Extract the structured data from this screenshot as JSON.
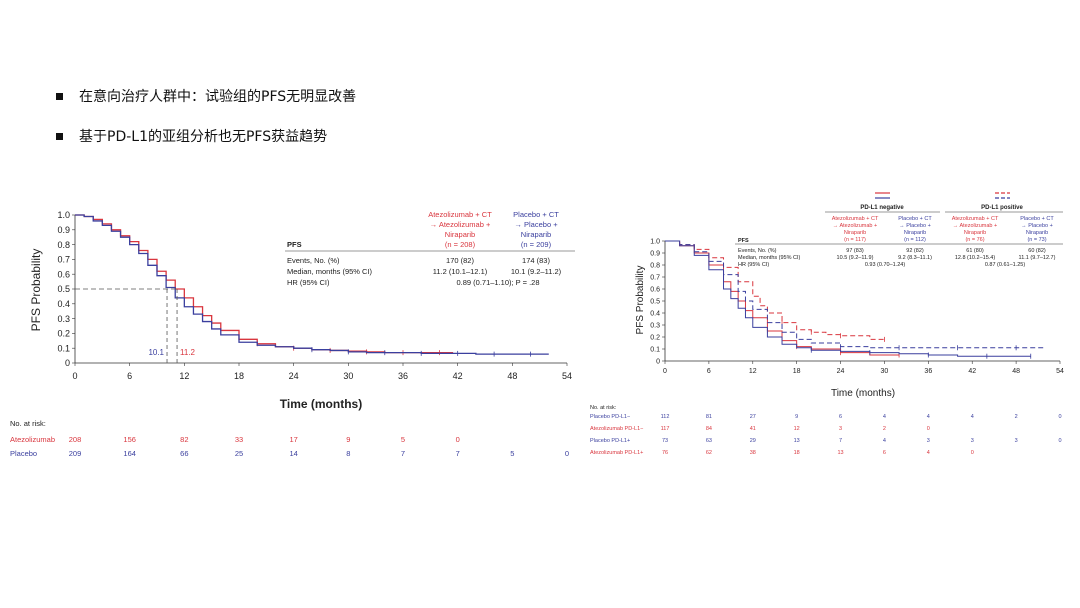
{
  "bullets": [
    "在意向治疗人群中：试验组的PFS无明显改善",
    "基于PD-L1的亚组分析也无PFS获益趋势"
  ],
  "left_chart": {
    "type": "line",
    "ylabel": "PFS Probability",
    "xlabel": "Time (months)",
    "x_ticks": [
      "0",
      "6",
      "12",
      "18",
      "24",
      "30",
      "36",
      "42",
      "48",
      "54"
    ],
    "y_ticks": [
      "0",
      "0.1",
      "0.2",
      "0.3",
      "0.4",
      "0.5",
      "0.6",
      "0.7",
      "0.8",
      "0.9",
      "1.0"
    ],
    "xlim": [
      0,
      54
    ],
    "ylim": [
      0,
      1
    ],
    "colors": {
      "atezo": "#d9363e",
      "placebo": "#3a3f9e"
    },
    "legend_atezo": [
      "Atezolizumab + CT",
      "→ Atezolizumab +",
      "Niraparib",
      "(n = 208)"
    ],
    "legend_placebo": [
      "Placebo + CT",
      "→ Placebo +",
      "Niraparib",
      "(n = 209)"
    ],
    "table_header": "PFS",
    "table_rows": [
      {
        "label": "Events, No. (%)",
        "a": "170 (82)",
        "p": "174 (83)"
      },
      {
        "label": "Median, months (95% CI)",
        "a": "11.2 (10.1–12.1)",
        "p": "10.1 (9.2–11.2)"
      }
    ],
    "hr_label": "HR (95% CI)",
    "hr_value": "0.89 (0.71–1.10); P = .28",
    "median_labels": {
      "placebo": "10.1",
      "atezo": "11.2"
    },
    "medians": {
      "placebo": 10.1,
      "atezo": 11.2
    },
    "series": [
      {
        "key": "atezo",
        "x": [
          0,
          1,
          2,
          3,
          4,
          5,
          6,
          7,
          8,
          9,
          10,
          11,
          12,
          13,
          14,
          15,
          16,
          18,
          20,
          22,
          24,
          26,
          28,
          30,
          32,
          34,
          36,
          38,
          40,
          41.5
        ],
        "y": [
          1.0,
          0.99,
          0.97,
          0.94,
          0.9,
          0.86,
          0.82,
          0.76,
          0.7,
          0.62,
          0.56,
          0.5,
          0.44,
          0.38,
          0.32,
          0.27,
          0.22,
          0.16,
          0.13,
          0.11,
          0.1,
          0.09,
          0.085,
          0.08,
          0.075,
          0.07,
          0.07,
          0.07,
          0.07,
          0.07
        ]
      },
      {
        "key": "placebo",
        "x": [
          0,
          1,
          2,
          3,
          4,
          5,
          6,
          7,
          8,
          9,
          10,
          11,
          12,
          13,
          14,
          15,
          16,
          18,
          20,
          22,
          24,
          26,
          28,
          30,
          32,
          34,
          36,
          38,
          40,
          42,
          44,
          46,
          48,
          50,
          52
        ],
        "y": [
          1.0,
          0.99,
          0.96,
          0.93,
          0.89,
          0.85,
          0.8,
          0.74,
          0.66,
          0.59,
          0.51,
          0.44,
          0.38,
          0.33,
          0.28,
          0.23,
          0.19,
          0.14,
          0.12,
          0.11,
          0.1,
          0.09,
          0.085,
          0.075,
          0.07,
          0.07,
          0.07,
          0.065,
          0.065,
          0.065,
          0.06,
          0.06,
          0.06,
          0.06,
          0.06
        ]
      }
    ],
    "risk_title": "No. at risk:",
    "risk_rows": [
      {
        "label": "Atezolizumab",
        "values": [
          "208",
          "156",
          "82",
          "33",
          "17",
          "9",
          "5",
          "0"
        ]
      },
      {
        "label": "Placebo",
        "values": [
          "209",
          "164",
          "66",
          "25",
          "14",
          "8",
          "7",
          "7",
          "5",
          "0"
        ]
      }
    ]
  },
  "right_chart": {
    "type": "line",
    "ylabel": "PFS Probability",
    "xlabel": "Time (months)",
    "x_ticks": [
      "0",
      "6",
      "12",
      "18",
      "24",
      "30",
      "36",
      "42",
      "48",
      "54"
    ],
    "y_ticks": [
      "0",
      "0.1",
      "0.2",
      "0.3",
      "0.4",
      "0.5",
      "0.6",
      "0.7",
      "0.8",
      "0.9",
      "1.0"
    ],
    "xlim": [
      0,
      54
    ],
    "ylim": [
      0,
      1
    ],
    "group_neg": "PD-L1 negative",
    "group_pos": "PD-L1 positive",
    "col_a_neg": [
      "Atezolizumab + CT",
      "→ Atezolizumab +",
      "Niraparib",
      "(n = 117)"
    ],
    "col_p_neg": [
      "Placebo + CT",
      "→ Placebo +",
      "Niraparib",
      "(n = 112)"
    ],
    "col_a_pos": [
      "Atezolizumab + CT",
      "→ Atezolizumab +",
      "Niraparib",
      "(n = 76)"
    ],
    "col_p_pos": [
      "Placebo + CT",
      "→ Placebo +",
      "Niraparib",
      "(n = 73)"
    ],
    "table_header": "PFS",
    "table_rows": [
      {
        "label": "Events, No. (%)",
        "v": [
          "97 (83)",
          "92 (82)",
          "61 (80)",
          "60 (82)"
        ]
      },
      {
        "label": "Median, months (95% CI)",
        "v": [
          "10.5 (9.2–11.9)",
          "9.2 (8.3–11.1)",
          "12.8 (10.2–15.4)",
          "11.1 (9.7–12.7)"
        ]
      }
    ],
    "hr_label": "HR (95% CI)",
    "hr_values": [
      "0.93 (0.70–1.24)",
      "0.87 (0.61–1.25)"
    ],
    "series": [
      {
        "key": "atezo_neg",
        "color": "#d9363e",
        "dash": "none",
        "x": [
          0,
          2,
          4,
          6,
          8,
          9,
          10,
          11,
          12,
          14,
          16,
          18,
          20,
          24,
          28,
          32
        ],
        "y": [
          1.0,
          0.96,
          0.9,
          0.8,
          0.66,
          0.58,
          0.5,
          0.42,
          0.36,
          0.25,
          0.17,
          0.12,
          0.1,
          0.07,
          0.05,
          0.05
        ]
      },
      {
        "key": "placebo_neg",
        "color": "#3a3f9e",
        "dash": "none",
        "x": [
          0,
          2,
          4,
          6,
          8,
          9,
          10,
          11,
          12,
          14,
          16,
          18,
          20,
          24,
          28,
          32,
          36,
          40,
          44,
          48,
          50
        ],
        "y": [
          1.0,
          0.96,
          0.88,
          0.76,
          0.6,
          0.52,
          0.44,
          0.36,
          0.28,
          0.2,
          0.14,
          0.11,
          0.09,
          0.08,
          0.07,
          0.06,
          0.05,
          0.04,
          0.04,
          0.04,
          0.04
        ]
      },
      {
        "key": "atezo_pos",
        "color": "#d9363e",
        "dash": "5,3",
        "x": [
          0,
          2,
          4,
          6,
          8,
          10,
          12,
          13,
          14,
          16,
          18,
          20,
          22,
          24,
          28,
          30
        ],
        "y": [
          1.0,
          0.97,
          0.93,
          0.86,
          0.78,
          0.66,
          0.54,
          0.46,
          0.4,
          0.32,
          0.26,
          0.24,
          0.22,
          0.21,
          0.18,
          0.18
        ]
      },
      {
        "key": "placebo_pos",
        "color": "#3a3f9e",
        "dash": "5,3",
        "x": [
          0,
          2,
          4,
          6,
          8,
          10,
          11,
          12,
          14,
          16,
          18,
          20,
          24,
          28,
          32,
          36,
          40,
          44,
          48,
          52
        ],
        "y": [
          1.0,
          0.97,
          0.91,
          0.83,
          0.72,
          0.58,
          0.5,
          0.43,
          0.32,
          0.24,
          0.18,
          0.15,
          0.12,
          0.11,
          0.11,
          0.11,
          0.11,
          0.11,
          0.11,
          0.11
        ]
      }
    ],
    "risk_title": "No. at risk:",
    "risk_rows": [
      {
        "label": "Placebo PD-L1−",
        "color": "#3a3f9e",
        "values": [
          "112",
          "81",
          "27",
          "9",
          "6",
          "4",
          "4",
          "4",
          "2",
          "0"
        ]
      },
      {
        "label": "Atezolizumab PD-L1−",
        "color": "#d9363e",
        "values": [
          "117",
          "84",
          "41",
          "12",
          "3",
          "2",
          "0"
        ]
      },
      {
        "label": "Placebo PD-L1+",
        "color": "#3a3f9e",
        "values": [
          "73",
          "63",
          "29",
          "13",
          "7",
          "4",
          "3",
          "3",
          "3",
          "0"
        ]
      },
      {
        "label": "Atezolizumab PD-L1+",
        "color": "#d9363e",
        "values": [
          "76",
          "62",
          "38",
          "18",
          "13",
          "6",
          "4",
          "0"
        ]
      }
    ]
  },
  "chart_data": [
    {
      "type": "line",
      "xlabel": "Time (months)",
      "ylabel": "PFS Probability",
      "xlim": [
        0,
        54
      ],
      "ylim": [
        0,
        1
      ],
      "series": [
        {
          "name": "Atezolizumab",
          "medians": 11.2
        },
        {
          "name": "Placebo",
          "medians": 10.1
        }
      ]
    },
    {
      "type": "line",
      "xlabel": "Time (months)",
      "ylabel": "PFS Probability",
      "xlim": [
        0,
        54
      ],
      "ylim": [
        0,
        1
      ]
    }
  ]
}
